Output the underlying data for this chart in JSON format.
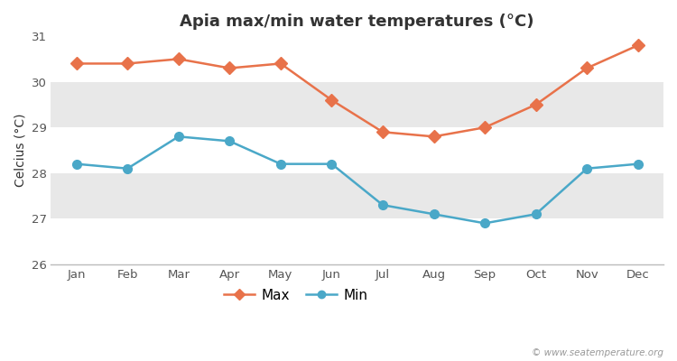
{
  "title": "Apia max/min water temperatures (°C)",
  "ylabel": "Celcius (°C)",
  "months": [
    "Jan",
    "Feb",
    "Mar",
    "Apr",
    "May",
    "Jun",
    "Jul",
    "Aug",
    "Sep",
    "Oct",
    "Nov",
    "Dec"
  ],
  "max_values": [
    30.4,
    30.4,
    30.5,
    30.3,
    30.4,
    29.6,
    28.9,
    28.8,
    29.0,
    29.5,
    30.3,
    30.8
  ],
  "min_values": [
    28.2,
    28.1,
    28.8,
    28.7,
    28.2,
    28.2,
    27.3,
    27.1,
    26.9,
    27.1,
    28.1,
    28.2
  ],
  "max_color": "#e8724a",
  "min_color": "#4aa8c8",
  "ylim": [
    26,
    31
  ],
  "yticks": [
    26,
    27,
    28,
    29,
    30,
    31
  ],
  "band_colors": [
    "#ffffff",
    "#e8e8e8"
  ],
  "outer_bg_color": "#ffffff",
  "watermark": "© www.seatemperature.org",
  "title_fontsize": 13,
  "label_fontsize": 10,
  "tick_fontsize": 9.5,
  "legend_labels": [
    "Max",
    "Min"
  ],
  "marker_max": "D",
  "marker_min": "o",
  "spine_color": "#bbbbbb"
}
